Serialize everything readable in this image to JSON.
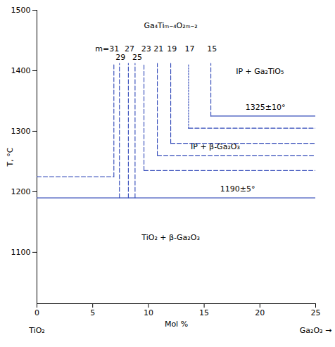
{
  "chart_data": {
    "type": "phase_diagram",
    "x_label": "Mol %",
    "y_label": "T, °C",
    "xlim": [
      0,
      25
    ],
    "ylim": [
      1015,
      1500
    ],
    "xticks": [
      0,
      5,
      10,
      15,
      20,
      25
    ],
    "yticks": [
      1100,
      1200,
      1300,
      1400,
      1500
    ],
    "grid": false,
    "color": "#3048b8",
    "x_end_labels": [
      {
        "text": "TiO₂",
        "x": 0
      },
      {
        "text": "Ga₂O₃ →",
        "x": 25
      }
    ],
    "lines": [
      {
        "x": [
          0,
          25
        ],
        "y": [
          1190,
          1190
        ],
        "line_style": "solid"
      },
      {
        "x": [
          15.6,
          25
        ],
        "y": [
          1325,
          1325
        ],
        "line_style": "solid"
      },
      {
        "x": [
          13.6,
          25
        ],
        "y": [
          1305,
          1305
        ],
        "line_style": "dashed"
      },
      {
        "x": [
          12.0,
          25
        ],
        "y": [
          1280,
          1280
        ],
        "line_style": "dashed"
      },
      {
        "x": [
          10.8,
          25
        ],
        "y": [
          1260,
          1260
        ],
        "line_style": "dashed"
      },
      {
        "x": [
          9.6,
          25
        ],
        "y": [
          1235,
          1235
        ],
        "line_style": "dashed"
      },
      {
        "x": [
          0,
          6.9
        ],
        "y": [
          1225,
          1225
        ],
        "line_style": "dashed"
      },
      {
        "x": [
          6.9,
          6.9
        ],
        "y": [
          1225,
          1412
        ],
        "line_style": "dashed"
      },
      {
        "x": [
          7.4,
          7.4
        ],
        "y": [
          1190,
          1412
        ],
        "line_style": "dashed"
      },
      {
        "x": [
          8.2,
          8.2
        ],
        "y": [
          1190,
          1412
        ],
        "line_style": "dashed"
      },
      {
        "x": [
          8.8,
          8.8
        ],
        "y": [
          1190,
          1412
        ],
        "line_style": "dashed"
      },
      {
        "x": [
          9.6,
          9.6
        ],
        "y": [
          1235,
          1412
        ],
        "line_style": "dashed"
      },
      {
        "x": [
          10.8,
          10.8
        ],
        "y": [
          1260,
          1412
        ],
        "line_style": "dashed"
      },
      {
        "x": [
          12.0,
          12.0
        ],
        "y": [
          1280,
          1412
        ],
        "line_style": "dashed"
      },
      {
        "x": [
          13.6,
          13.6
        ],
        "y": [
          1305,
          1412
        ],
        "line_style": "dotted"
      },
      {
        "x": [
          15.6,
          15.6
        ],
        "y": [
          1325,
          1412
        ],
        "line_style": "dashed"
      }
    ],
    "annotations": [
      {
        "text": "Ga₄Tiₘ₋₄O₂ₘ₋₂",
        "x": 12,
        "y": 1470
      },
      {
        "text": "IP + Ga₂TiO₅",
        "x": 20,
        "y": 1395
      },
      {
        "text": "IP + β-Ga₂O₃",
        "x": 16,
        "y": 1270
      },
      {
        "text": "TiO₂ + β-Ga₂O₃",
        "x": 12,
        "y": 1120
      },
      {
        "text": "1325±10°",
        "x": 20.5,
        "y": 1336
      },
      {
        "text": "1190±5°",
        "x": 18,
        "y": 1200
      },
      {
        "text": "m=31",
        "x": 6.3,
        "y": 1432
      },
      {
        "text": "29",
        "x": 7.5,
        "y": 1418
      },
      {
        "text": "27",
        "x": 8.3,
        "y": 1432
      },
      {
        "text": "25",
        "x": 9.0,
        "y": 1418
      },
      {
        "text": "23",
        "x": 9.8,
        "y": 1432
      },
      {
        "text": "21",
        "x": 10.9,
        "y": 1432
      },
      {
        "text": "19",
        "x": 12.1,
        "y": 1432
      },
      {
        "text": "17",
        "x": 13.7,
        "y": 1432
      },
      {
        "text": "15",
        "x": 15.7,
        "y": 1432
      }
    ]
  }
}
